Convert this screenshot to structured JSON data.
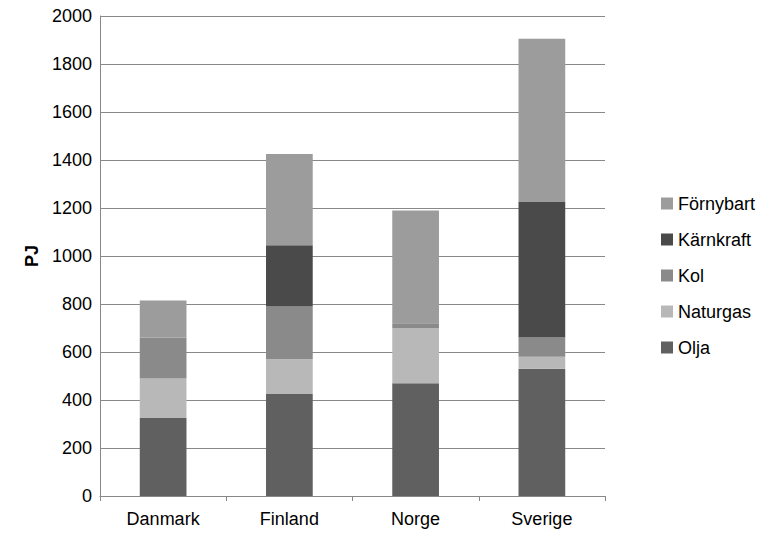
{
  "chart_data": {
    "type": "bar",
    "stacked": true,
    "ylabel": "PJ",
    "categories": [
      "Danmark",
      "Finland",
      "Norge",
      "Sverige"
    ],
    "series": [
      {
        "name": "Olja",
        "color": "#606060",
        "values": [
          325,
          425,
          470,
          530
        ]
      },
      {
        "name": "Naturgas",
        "color": "#b8b8b8",
        "values": [
          165,
          145,
          230,
          50
        ]
      },
      {
        "name": "Kol",
        "color": "#8a8a8a",
        "values": [
          170,
          220,
          20,
          80
        ]
      },
      {
        "name": "Kärnkraft",
        "color": "#4a4a4a",
        "values": [
          0,
          255,
          0,
          565
        ]
      },
      {
        "name": "Förnybart",
        "color": "#9c9c9c",
        "values": [
          155,
          380,
          470,
          680
        ]
      }
    ],
    "ylim": [
      0,
      2000
    ],
    "yticks": [
      0,
      200,
      400,
      600,
      800,
      1000,
      1200,
      1400,
      1600,
      1800,
      2000
    ],
    "grid": true,
    "legend": "right"
  }
}
